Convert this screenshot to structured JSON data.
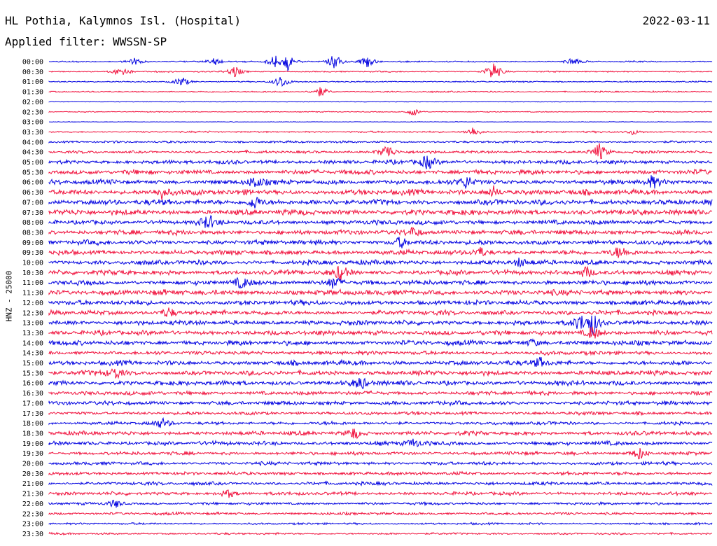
{
  "header": {
    "station": "HL Pothia, Kalymnos Isl. (Hospital)",
    "date": "2022-03-11",
    "filter": "Applied filter: WWSSN-SP"
  },
  "chart_data": {
    "type": "line",
    "chart_kind": "helicorder",
    "ylabel": "HNZ - 25000",
    "row_labels": [
      "00:00",
      "00:30",
      "01:00",
      "01:30",
      "02:00",
      "02:30",
      "03:00",
      "03:30",
      "04:00",
      "04:30",
      "05:00",
      "05:30",
      "06:00",
      "06:30",
      "07:00",
      "07:30",
      "08:00",
      "08:30",
      "09:00",
      "09:30",
      "10:00",
      "10:30",
      "11:00",
      "11:30",
      "12:00",
      "12:30",
      "13:00",
      "13:30",
      "14:00",
      "14:30",
      "15:00",
      "15:30",
      "16:00",
      "16:30",
      "17:00",
      "17:30",
      "18:00",
      "18:30",
      "19:00",
      "19:30",
      "20:00",
      "20:30",
      "21:00",
      "21:30",
      "22:00",
      "22:30",
      "23:00",
      "23:30"
    ],
    "trace_colors": [
      "#0000e0",
      "#f0103c"
    ],
    "noise_level": [
      1,
      1,
      1,
      1,
      0.5,
      0.7,
      0.4,
      1.2,
      1.6,
      2,
      3,
      3.5,
      3.5,
      4,
      4,
      4,
      3.5,
      3.5,
      3.5,
      3.5,
      3.5,
      3.5,
      3.5,
      4,
      3.5,
      3.5,
      3.5,
      3.5,
      3.5,
      3,
      3.5,
      3.5,
      3.5,
      3,
      3,
      2.5,
      2.5,
      3,
      3,
      2.5,
      2.5,
      2.5,
      2.5,
      2.5,
      2,
      2,
      1.5,
      1.5
    ],
    "events": [
      [
        [
          0.13,
          7
        ],
        [
          0.25,
          6
        ],
        [
          0.34,
          9
        ],
        [
          0.36,
          12
        ],
        [
          0.43,
          14
        ],
        [
          0.48,
          9
        ],
        [
          0.79,
          7
        ]
      ],
      [
        [
          0.11,
          10
        ],
        [
          0.28,
          9
        ],
        [
          0.67,
          16
        ]
      ],
      [
        [
          0.2,
          8
        ],
        [
          0.35,
          10
        ]
      ],
      [
        [
          0.41,
          8
        ]
      ],
      [],
      [
        [
          0.55,
          6
        ]
      ],
      [],
      [
        [
          0.64,
          8
        ],
        [
          0.88,
          4
        ]
      ],
      [],
      [
        [
          0.51,
          13
        ],
        [
          0.83,
          13
        ]
      ],
      [
        [
          0.57,
          12
        ]
      ],
      [],
      [
        [
          0.31,
          10
        ],
        [
          0.63,
          10
        ],
        [
          0.91,
          9
        ]
      ],
      [
        [
          0.17,
          9
        ],
        [
          0.67,
          8
        ]
      ],
      [
        [
          0.31,
          11
        ]
      ],
      [],
      [
        [
          0.24,
          10
        ]
      ],
      [
        [
          0.55,
          8
        ]
      ],
      [
        [
          0.53,
          9
        ]
      ],
      [
        [
          0.65,
          8
        ],
        [
          0.86,
          8
        ]
      ],
      [
        [
          0.71,
          6
        ]
      ],
      [
        [
          0.44,
          11
        ],
        [
          0.81,
          10
        ]
      ],
      [
        [
          0.29,
          8
        ],
        [
          0.43,
          11
        ]
      ],
      [],
      [],
      [
        [
          0.18,
          8
        ]
      ],
      [
        [
          0.8,
          10
        ],
        [
          0.82,
          16
        ]
      ],
      [
        [
          0.82,
          12
        ]
      ],
      [
        [
          0.73,
          6
        ]
      ],
      [],
      [
        [
          0.74,
          8
        ]
      ],
      [
        [
          0.1,
          10
        ]
      ],
      [
        [
          0.47,
          10
        ]
      ],
      [],
      [],
      [],
      [
        [
          0.17,
          7
        ]
      ],
      [
        [
          0.46,
          9
        ]
      ],
      [
        [
          0.55,
          7
        ]
      ],
      [
        [
          0.89,
          10
        ]
      ],
      [],
      [],
      [],
      [
        [
          0.27,
          6
        ]
      ],
      [
        [
          0.1,
          7
        ]
      ],
      [],
      [],
      []
    ]
  }
}
